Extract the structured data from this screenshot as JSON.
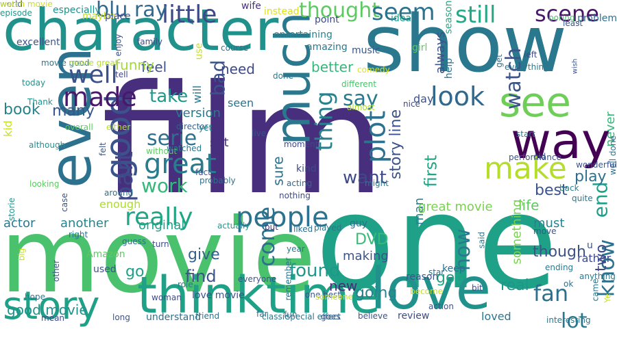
{
  "words": [
    {
      "text": "film",
      "color": "#472f7d"
    },
    {
      "text": "one",
      "color": "#1fa187"
    },
    {
      "text": "movie",
      "color": "#4ac16d"
    },
    {
      "text": "show",
      "color": "#2a788e"
    },
    {
      "text": "character",
      "color": "#21918c"
    },
    {
      "text": "even",
      "color": "#2c718e"
    },
    {
      "text": "love",
      "color": "#21918c"
    },
    {
      "text": "time",
      "color": "#1fa187"
    },
    {
      "text": "think",
      "color": "#1fa187"
    },
    {
      "text": "story",
      "color": "#1fa187"
    },
    {
      "text": "way",
      "color": "#440154"
    },
    {
      "text": "see",
      "color": "#6ece58"
    },
    {
      "text": "much",
      "color": "#2a788e"
    },
    {
      "text": "make",
      "color": "#b5de2b"
    },
    {
      "text": "good",
      "color": "#3b528b"
    },
    {
      "text": "people",
      "color": "#2c728e"
    },
    {
      "text": "really",
      "color": "#21a685"
    },
    {
      "text": "great",
      "color": "#287c8e"
    },
    {
      "text": "made",
      "color": "#48186a"
    },
    {
      "text": "well",
      "color": "#3b528b"
    },
    {
      "text": "scene",
      "color": "#481769"
    },
    {
      "text": "still",
      "color": "#22a884"
    },
    {
      "text": "little",
      "color": "#3e4989"
    },
    {
      "text": "thought",
      "color": "#5ec962"
    },
    {
      "text": "seem",
      "color": "#2c728e"
    },
    {
      "text": "blu ray",
      "color": "#31688e"
    },
    {
      "text": "look",
      "color": "#31688e"
    },
    {
      "text": "say",
      "color": "#2a788e"
    },
    {
      "text": "plot",
      "color": "#2c728e"
    },
    {
      "text": "thing",
      "color": "#26828e"
    },
    {
      "text": "serie",
      "color": "#2d708e"
    },
    {
      "text": "part",
      "color": "#3e4989"
    },
    {
      "text": "work",
      "color": "#35b779"
    },
    {
      "text": "take",
      "color": "#1f998a"
    },
    {
      "text": "bad",
      "color": "#3b528b"
    },
    {
      "text": "watch",
      "color": "#3b528b"
    },
    {
      "text": "end",
      "color": "#1f9e89"
    },
    {
      "text": "fan",
      "color": "#2d708e"
    },
    {
      "text": "know",
      "color": "#2c728e"
    },
    {
      "text": "lot",
      "color": "#2a788e"
    },
    {
      "text": "come",
      "color": "#2c718e"
    },
    {
      "text": "DVD",
      "color": "#3aba76"
    },
    {
      "text": "found",
      "color": "#1f988b"
    },
    {
      "text": "good movie",
      "color": "#20928c"
    },
    {
      "text": "book",
      "color": "#26828e"
    },
    {
      "text": "feel",
      "color": "#3b528b"
    },
    {
      "text": "many",
      "color": "#39568c"
    },
    {
      "text": "need",
      "color": "#3e4989"
    },
    {
      "text": "better",
      "color": "#35b779"
    },
    {
      "text": "first",
      "color": "#21a685"
    },
    {
      "text": "best",
      "color": "#3b528b"
    },
    {
      "text": "play",
      "color": "#2e6f8e"
    },
    {
      "text": "life",
      "color": "#5ec962"
    },
    {
      "text": "want",
      "color": "#3e4989"
    },
    {
      "text": "now",
      "color": "#2a788e"
    },
    {
      "text": "actor",
      "color": "#2a788e"
    },
    {
      "text": "another",
      "color": "#25858e"
    },
    {
      "text": "original",
      "color": "#1fa088"
    },
    {
      "text": "give",
      "color": "#355f8d"
    },
    {
      "text": "find",
      "color": "#3b528b"
    },
    {
      "text": "go",
      "color": "#1fa088"
    },
    {
      "text": "new",
      "color": "#472c7a"
    },
    {
      "text": "going",
      "color": "#26828e"
    },
    {
      "text": "got",
      "color": "#21a685"
    },
    {
      "text": "real",
      "color": "#1f968b"
    },
    {
      "text": "though",
      "color": "#3b528b"
    },
    {
      "text": "two",
      "color": "#3e4989"
    },
    {
      "text": "something",
      "color": "#7ad151"
    },
    {
      "text": "always",
      "color": "#3b528b"
    },
    {
      "text": "version",
      "color": "#2a788e"
    },
    {
      "text": "set",
      "color": "#46307e"
    },
    {
      "text": "sure",
      "color": "#2c728e"
    },
    {
      "text": "story line",
      "color": "#3b528b"
    },
    {
      "text": "funny",
      "color": "#a2da37"
    },
    {
      "text": "man",
      "color": "#26828e"
    },
    {
      "text": "great movie",
      "color": "#7ad151"
    },
    {
      "text": "guy",
      "color": "#2d708e"
    },
    {
      "text": "kind",
      "color": "#3e4989"
    },
    {
      "text": "seen",
      "color": "#2c728e"
    },
    {
      "text": "day",
      "color": "#3b528b"
    },
    {
      "text": "never",
      "color": "#35b779"
    },
    {
      "text": "will",
      "color": "#2a788e"
    },
    {
      "text": "enough",
      "color": "#addc30"
    },
    {
      "text": "kid",
      "color": "#c8e020"
    },
    {
      "text": "especially",
      "color": "#21918c"
    },
    {
      "text": "maybe",
      "color": "#c8e020"
    },
    {
      "text": "place",
      "color": "#3e4989"
    },
    {
      "text": "wife",
      "color": "#46307e"
    },
    {
      "text": "instead",
      "color": "#dde318"
    },
    {
      "text": "point",
      "color": "#3e4989"
    },
    {
      "text": "idea",
      "color": "#1fa088"
    },
    {
      "text": "season",
      "color": "#22a884"
    },
    {
      "text": "least",
      "color": "#3b528b"
    },
    {
      "text": "boring",
      "color": "#4ac16d"
    },
    {
      "text": "problem",
      "color": "#2e6f8e"
    },
    {
      "text": "episode",
      "color": "#1f988b"
    },
    {
      "text": "excellent",
      "color": "#3b528b"
    },
    {
      "text": "enjoy",
      "color": "#3b528b"
    },
    {
      "text": "family",
      "color": "#3e4989"
    },
    {
      "text": "use",
      "color": "#c8e020"
    },
    {
      "text": "amazing",
      "color": "#2a788e"
    },
    {
      "text": "entertaining",
      "color": "#26828e"
    },
    {
      "text": "music",
      "color": "#39568c"
    },
    {
      "text": "girl",
      "color": "#5ec962"
    },
    {
      "text": "get",
      "color": "#2e6f8e"
    },
    {
      "text": "left",
      "color": "#3e4989"
    },
    {
      "text": "everything",
      "color": "#2a788e"
    },
    {
      "text": "help",
      "color": "#2d708e"
    },
    {
      "text": "wish",
      "color": "#3b528b"
    },
    {
      "text": "course",
      "color": "#2c728e"
    },
    {
      "text": "comedy",
      "color": "#dde318"
    },
    {
      "text": "movie good",
      "color": "#2a788e"
    },
    {
      "text": "movie great",
      "color": "#b5de2b"
    },
    {
      "text": "tell",
      "color": "#3e4989"
    },
    {
      "text": "today",
      "color": "#21918c"
    },
    {
      "text": "Thank",
      "color": "#21918c"
    },
    {
      "text": "done",
      "color": "#2a788e"
    },
    {
      "text": "different",
      "color": "#4ac16d"
    },
    {
      "text": "almost",
      "color": "#addc30"
    },
    {
      "text": "nice",
      "color": "#3e4989"
    },
    {
      "text": "overall",
      "color": "#5ec962"
    },
    {
      "text": "either",
      "color": "#b5de2b"
    },
    {
      "text": "director",
      "color": "#355f8d"
    },
    {
      "text": "yet",
      "color": "#26828e"
    },
    {
      "text": "live",
      "color": "#3b528b"
    },
    {
      "text": "moment",
      "color": "#3e4989"
    },
    {
      "text": "start",
      "color": "#2a788e"
    },
    {
      "text": "performance",
      "color": "#3b528b"
    },
    {
      "text": "old",
      "color": "#3b528b"
    },
    {
      "text": "well done",
      "color": "#2c728e"
    },
    {
      "text": "wonderful",
      "color": "#3b528b"
    },
    {
      "text": "although",
      "color": "#21918c"
    },
    {
      "text": "felt",
      "color": "#39568c"
    },
    {
      "text": "without",
      "color": "#5ec962"
    },
    {
      "text": "watched",
      "color": "#2a788e"
    },
    {
      "text": "fact",
      "color": "#3b528b"
    },
    {
      "text": "probably",
      "color": "#2c728e"
    },
    {
      "text": "looking",
      "color": "#5ec962"
    },
    {
      "text": "around",
      "color": "#2e6f8e"
    },
    {
      "text": "acting",
      "color": "#31688e"
    },
    {
      "text": "might",
      "color": "#2a788e"
    },
    {
      "text": "back",
      "color": "#26828e"
    },
    {
      "text": "quite",
      "color": "#2a788e"
    },
    {
      "text": "storie",
      "color": "#21918c"
    },
    {
      "text": "case",
      "color": "#3b528b"
    },
    {
      "text": "nothing",
      "color": "#3e4989"
    },
    {
      "text": "actually",
      "color": "#20928c"
    },
    {
      "text": "put",
      "color": "#46307e"
    },
    {
      "text": "liked",
      "color": "#2d708e"
    },
    {
      "text": "played",
      "color": "#2a788e"
    },
    {
      "text": "must",
      "color": "#26828e"
    },
    {
      "text": "move",
      "color": "#39568c"
    },
    {
      "text": "u",
      "color": "#3b528b"
    },
    {
      "text": "rather",
      "color": "#3e4989"
    },
    {
      "text": "said",
      "color": "#2a788e"
    },
    {
      "text": "right",
      "color": "#2c718e"
    },
    {
      "text": "guess",
      "color": "#2e6f8e"
    },
    {
      "text": "turn",
      "color": "#3e4989"
    },
    {
      "text": "year",
      "color": "#2a788e"
    },
    {
      "text": "making",
      "color": "#3b528b"
    },
    {
      "text": "keep",
      "color": "#2d708e"
    },
    {
      "text": "star",
      "color": "#2d708e"
    },
    {
      "text": "ending",
      "color": "#2a788e"
    },
    {
      "text": "big",
      "color": "#c8e020"
    },
    {
      "text": "Amazon",
      "color": "#5ec962"
    },
    {
      "text": "used",
      "color": "#3b528b"
    },
    {
      "text": "other",
      "color": "#3b528b"
    },
    {
      "text": "role",
      "color": "#2a788e"
    },
    {
      "text": "everyone",
      "color": "#3b528b"
    },
    {
      "text": "remember",
      "color": "#2c728e"
    },
    {
      "text": "reason",
      "color": "#3b528b"
    },
    {
      "text": "become",
      "color": "#c8e020"
    },
    {
      "text": "bit",
      "color": "#3e4989"
    },
    {
      "text": "ok",
      "color": "#2d708e"
    },
    {
      "text": "anything",
      "color": "#2a788e"
    },
    {
      "text": "came",
      "color": "#2a788e"
    },
    {
      "text": "Ye",
      "color": "#c8e020"
    },
    {
      "text": "hope",
      "color": "#2a788e"
    },
    {
      "text": "woman",
      "color": "#3e4989"
    },
    {
      "text": "love movie",
      "color": "#3b528b"
    },
    {
      "text": "one best",
      "color": "#3b528b"
    },
    {
      "text": "someone",
      "color": "#c8e020"
    },
    {
      "text": "far",
      "color": "#2e6f8e"
    },
    {
      "text": "fun",
      "color": "#2e6f8e"
    },
    {
      "text": "mean",
      "color": "#3e4989"
    },
    {
      "text": "long",
      "color": "#3b528b"
    },
    {
      "text": "understand",
      "color": "#2d708e"
    },
    {
      "text": "friend",
      "color": "#2c728e"
    },
    {
      "text": "classic",
      "color": "#2a788e"
    },
    {
      "text": "special effect",
      "color": "#2c728e"
    },
    {
      "text": "goes",
      "color": "#3b528b"
    },
    {
      "text": "believe",
      "color": "#3b528b"
    },
    {
      "text": "review",
      "color": "#3e4989"
    },
    {
      "text": "action",
      "color": "#3b528b"
    },
    {
      "text": "loved",
      "color": "#2a788e"
    },
    {
      "text": "interesting",
      "color": "#2a788e"
    },
    {
      "text": "world",
      "color": "#3b528b"
    },
    {
      "text": "watch movie",
      "color": "#c8e020"
    }
  ]
}
